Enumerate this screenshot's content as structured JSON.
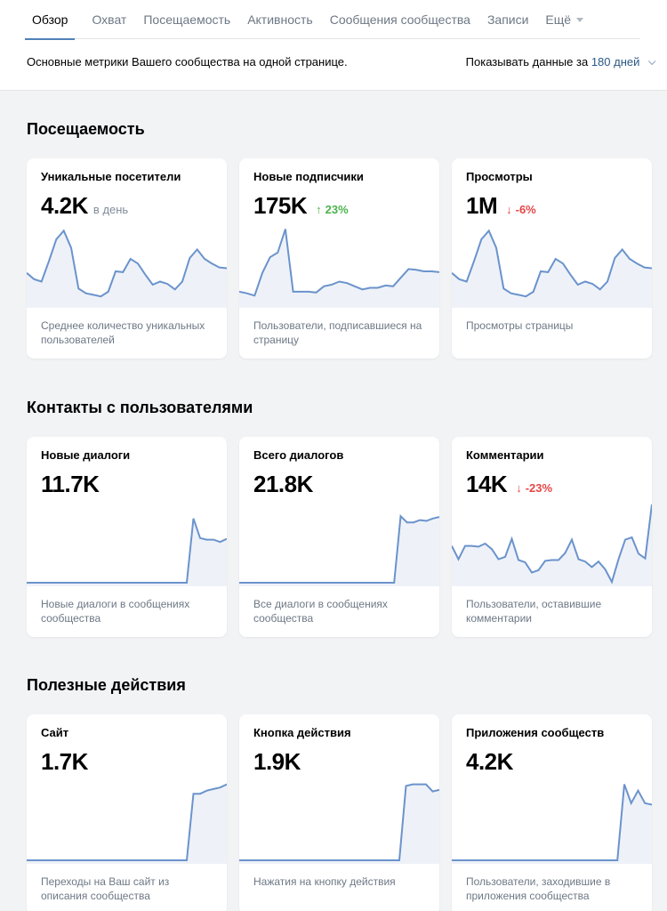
{
  "tabs": [
    {
      "label": "Обзор",
      "active": true
    },
    {
      "label": "Охват",
      "active": false
    },
    {
      "label": "Посещаемость",
      "active": false
    },
    {
      "label": "Активность",
      "active": false
    },
    {
      "label": "Сообщения сообщества",
      "active": false
    },
    {
      "label": "Записи",
      "active": false
    }
  ],
  "more_tab": {
    "label": "Ещё"
  },
  "subheader": {
    "description": "Основные метрики Вашего сообщества на одной странице.",
    "period_prefix": "Показывать данные за",
    "period_value": "180 дней"
  },
  "colors": {
    "accent": "#5181b8",
    "link": "#2a5885",
    "up": "#4bb34b",
    "down": "#e64646",
    "line": "#6b93cc",
    "fill": "#eef2f8"
  },
  "sections": [
    {
      "title": "Посещаемость",
      "cards": [
        {
          "title": "Уникальные посетители",
          "value": "4.2K",
          "suffix": "в день",
          "delta": "",
          "delta_dir": "",
          "desc": "Среднее количество уникальных пользователей",
          "series": [
            40,
            32,
            29,
            55,
            83,
            94,
            72,
            20,
            14,
            12,
            10,
            16,
            42,
            41,
            58,
            52,
            38,
            25,
            29,
            26,
            19,
            29,
            59,
            70,
            58,
            52,
            47,
            46
          ]
        },
        {
          "title": "Новые подписчики",
          "value": "175K",
          "suffix": "",
          "delta": "23%",
          "delta_dir": "up",
          "desc": "Пользователи, подписавшиеся на страницу",
          "series": [
            16,
            14,
            11,
            40,
            60,
            66,
            96,
            16,
            16,
            16,
            15,
            23,
            25,
            29,
            27,
            23,
            19,
            21,
            21,
            24,
            23,
            34,
            45,
            44,
            42,
            42,
            41
          ]
        },
        {
          "title": "Просмотры",
          "value": "1M",
          "suffix": "",
          "delta": "-6%",
          "delta_dir": "down",
          "desc": "Просмотры страницы",
          "series": [
            40,
            32,
            29,
            55,
            83,
            94,
            72,
            20,
            14,
            12,
            10,
            16,
            42,
            41,
            58,
            52,
            38,
            25,
            29,
            26,
            19,
            29,
            59,
            70,
            58,
            52,
            47,
            46
          ]
        }
      ]
    },
    {
      "title": "Контакты с пользователями",
      "cards": [
        {
          "title": "Новые диалоги",
          "value": "11.7K",
          "suffix": "",
          "delta": "",
          "delta_dir": "",
          "desc": "Новые диалоги в сообщениях сообщества",
          "series": [
            0,
            0,
            0,
            0,
            0,
            0,
            0,
            0,
            0,
            0,
            0,
            0,
            0,
            0,
            0,
            0,
            0,
            0,
            0,
            0,
            0,
            0,
            0,
            0,
            0,
            82,
            57,
            55,
            55,
            52,
            56
          ]
        },
        {
          "title": "Всего диалогов",
          "value": "21.8K",
          "suffix": "",
          "delta": "",
          "delta_dir": "",
          "desc": "Все диалоги в сообщениях сообщества",
          "series": [
            0,
            0,
            0,
            0,
            0,
            0,
            0,
            0,
            0,
            0,
            0,
            0,
            0,
            0,
            0,
            0,
            0,
            0,
            0,
            0,
            0,
            0,
            0,
            0,
            0,
            85,
            77,
            77,
            80,
            79,
            82,
            84
          ]
        },
        {
          "title": "Комментарии",
          "value": "14K",
          "suffix": "",
          "delta": "-23%",
          "delta_dir": "down",
          "desc": "Пользователи, оставившие комментарии",
          "series": [
            47,
            30,
            47,
            47,
            46,
            50,
            43,
            30,
            33,
            56,
            29,
            26,
            13,
            16,
            28,
            29,
            29,
            38,
            55,
            30,
            27,
            20,
            27,
            17,
            1,
            30,
            55,
            58,
            37,
            31,
            100
          ]
        }
      ]
    },
    {
      "title": "Полезные действия",
      "cards": [
        {
          "title": "Сайт",
          "value": "1.7K",
          "suffix": "",
          "delta": "",
          "delta_dir": "",
          "desc": "Переходы на Ваш сайт из описания сообщества",
          "series": [
            0,
            0,
            0,
            0,
            0,
            0,
            0,
            0,
            0,
            0,
            0,
            0,
            0,
            0,
            0,
            0,
            0,
            0,
            0,
            0,
            0,
            0,
            0,
            0,
            0,
            85,
            85,
            89,
            91,
            93,
            97
          ]
        },
        {
          "title": "Кнопка действия",
          "value": "1.9K",
          "suffix": "",
          "delta": "",
          "delta_dir": "",
          "desc": "Нажатия на кнопку действия",
          "series": [
            0,
            0,
            0,
            0,
            0,
            0,
            0,
            0,
            0,
            0,
            0,
            0,
            0,
            0,
            0,
            0,
            0,
            0,
            0,
            0,
            0,
            0,
            0,
            0,
            0,
            95,
            97,
            97,
            97,
            88,
            90
          ]
        },
        {
          "title": "Приложения сообществ",
          "value": "4.2K",
          "suffix": "",
          "delta": "",
          "delta_dir": "",
          "desc": "Пользователи, заходившие в приложения сообщества",
          "series": [
            0,
            0,
            0,
            0,
            0,
            0,
            0,
            0,
            0,
            0,
            0,
            0,
            0,
            0,
            0,
            0,
            0,
            0,
            0,
            0,
            0,
            0,
            0,
            0,
            0,
            97,
            73,
            89,
            73,
            71
          ]
        }
      ]
    }
  ]
}
